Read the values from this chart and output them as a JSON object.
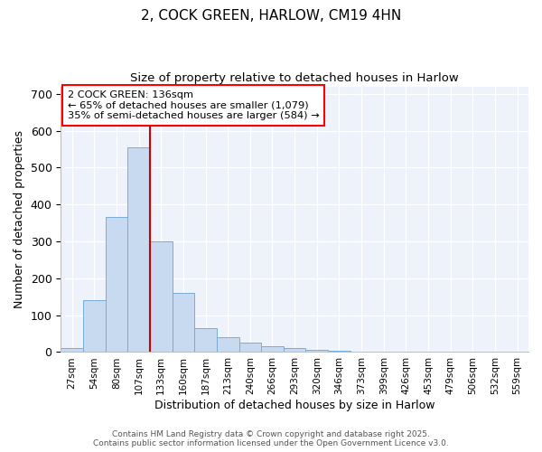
{
  "title1": "2, COCK GREEN, HARLOW, CM19 4HN",
  "title2": "Size of property relative to detached houses in Harlow",
  "xlabel": "Distribution of detached houses by size in Harlow",
  "ylabel": "Number of detached properties",
  "categories": [
    "27sqm",
    "54sqm",
    "80sqm",
    "107sqm",
    "133sqm",
    "160sqm",
    "187sqm",
    "213sqm",
    "240sqm",
    "266sqm",
    "293sqm",
    "320sqm",
    "346sqm",
    "373sqm",
    "399sqm",
    "426sqm",
    "453sqm",
    "479sqm",
    "506sqm",
    "532sqm",
    "559sqm"
  ],
  "values": [
    10,
    140,
    365,
    555,
    300,
    160,
    65,
    40,
    25,
    15,
    10,
    5,
    3,
    1,
    0,
    0,
    0,
    0,
    0,
    0,
    0
  ],
  "bar_color": "#c8daf0",
  "bar_edge_color": "#7aadd4",
  "vline_color": "#cc0000",
  "annotation_text": "2 COCK GREEN: 136sqm\n← 65% of detached houses are smaller (1,079)\n35% of semi-detached houses are larger (584) →",
  "footer1": "Contains HM Land Registry data © Crown copyright and database right 2025.",
  "footer2": "Contains public sector information licensed under the Open Government Licence v3.0.",
  "bg_color": "#eef2fb",
  "ylim": [
    0,
    720
  ],
  "yticks": [
    0,
    100,
    200,
    300,
    400,
    500,
    600,
    700
  ]
}
